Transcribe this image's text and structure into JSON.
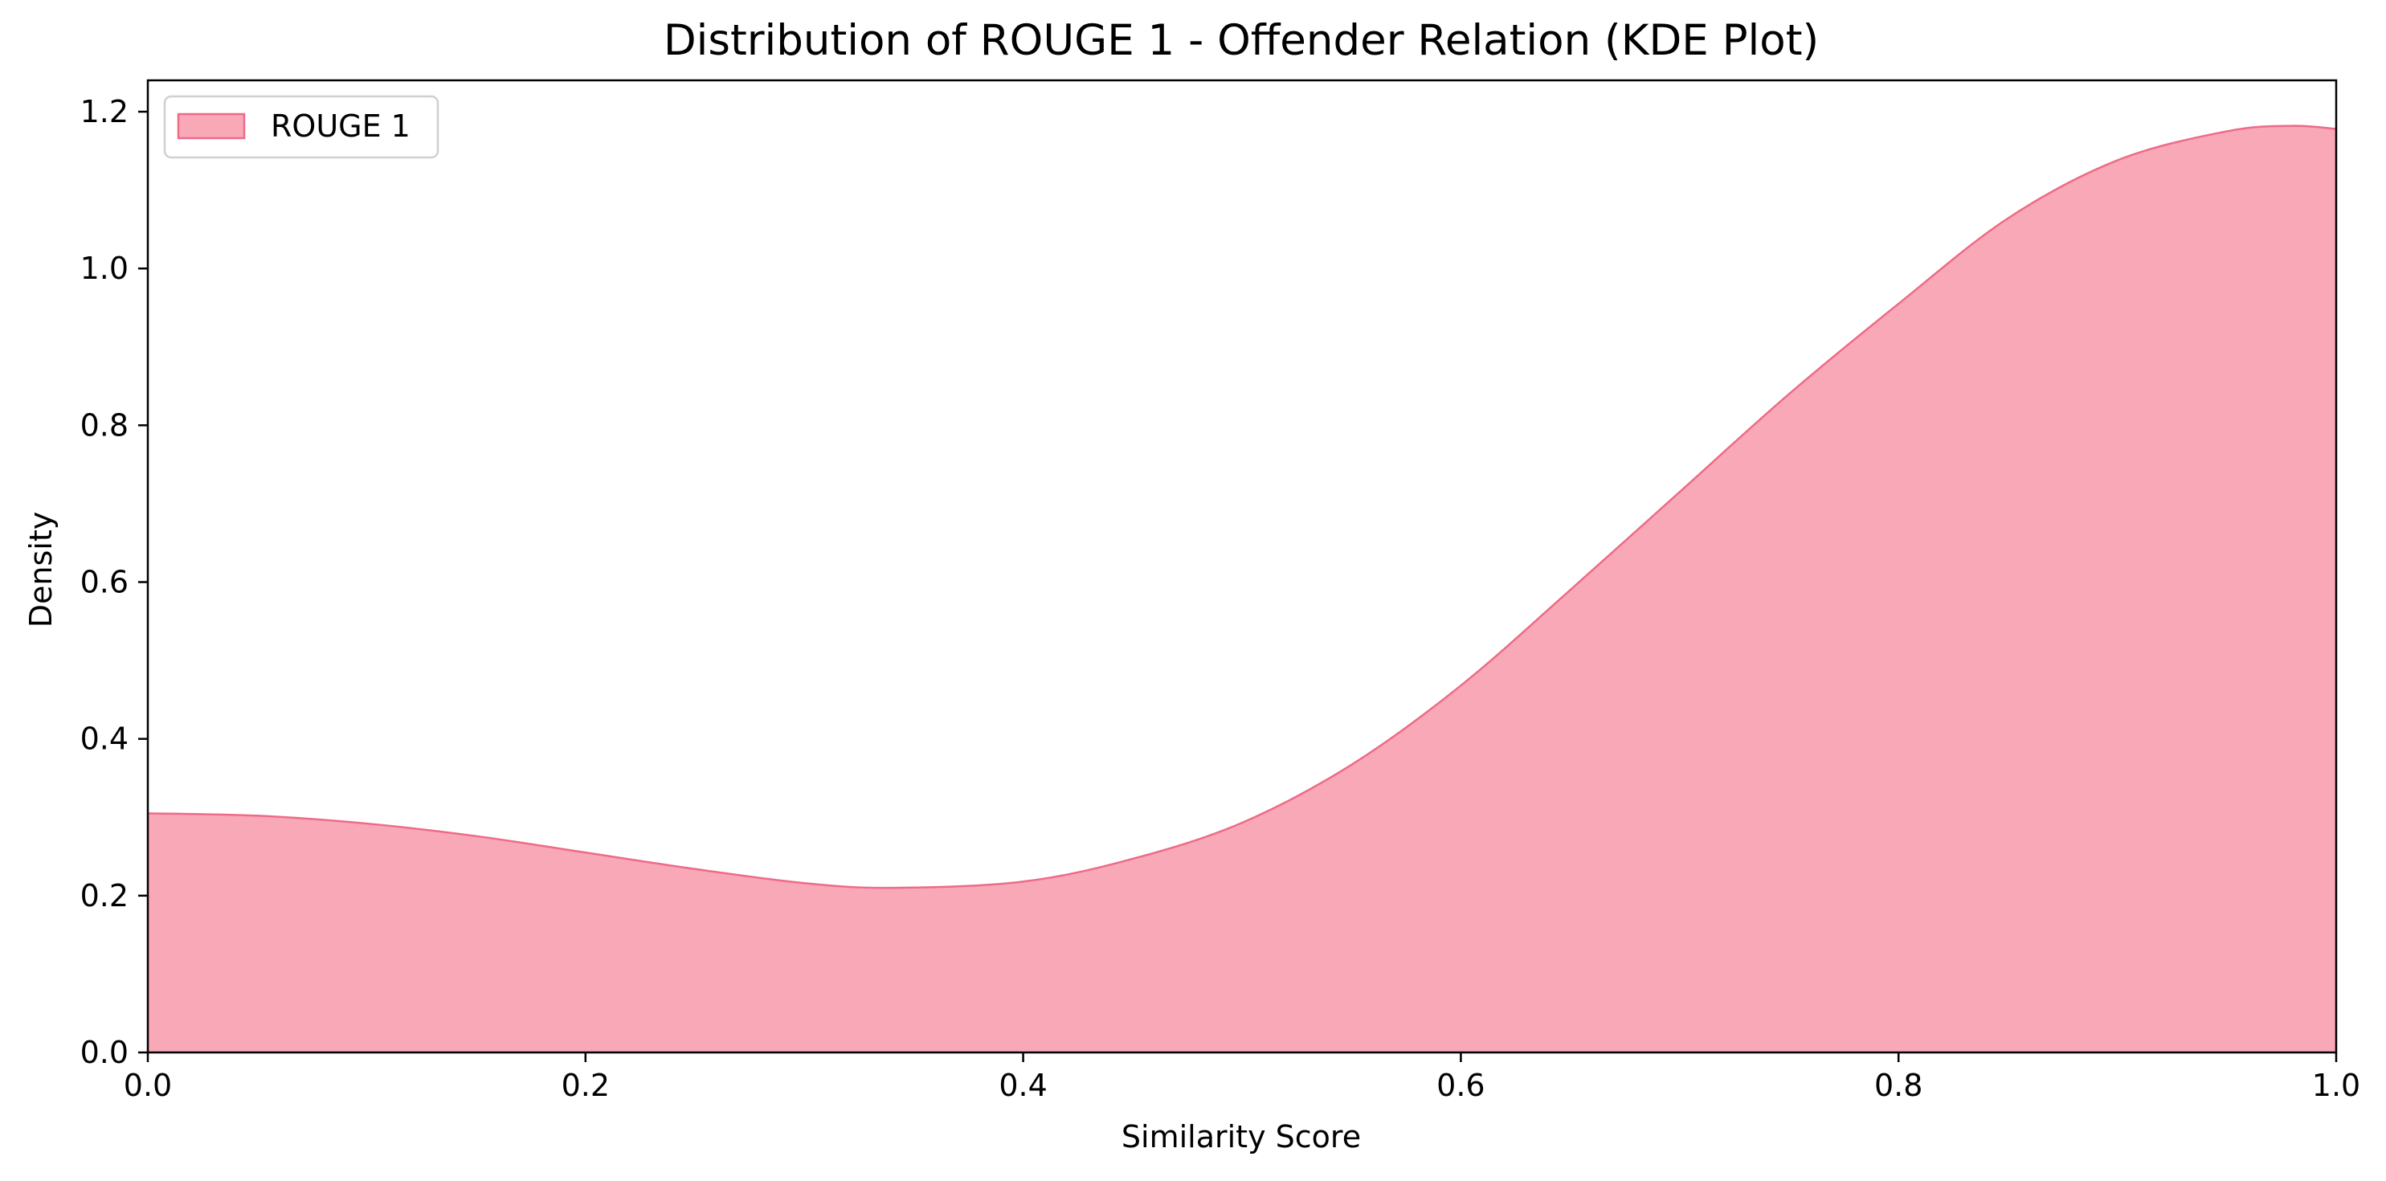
{
  "chart_data": {
    "type": "area",
    "title": "Distribution of ROUGE 1 - Offender Relation (KDE Plot)",
    "xlabel": "Similarity Score",
    "ylabel": "Density",
    "xlim": [
      0.0,
      1.0
    ],
    "ylim": [
      0.0,
      1.24
    ],
    "xticks": [
      "0.0",
      "0.2",
      "0.4",
      "0.6",
      "0.8",
      "1.0"
    ],
    "yticks": [
      "0.0",
      "0.2",
      "0.4",
      "0.6",
      "0.8",
      "1.0",
      "1.2"
    ],
    "grid": false,
    "legend_position": "top-left",
    "series": [
      {
        "name": "ROUGE 1",
        "fill_color": "#f9a8b8",
        "line_color": "#ee6b86",
        "x": [
          0.0,
          0.05,
          0.1,
          0.15,
          0.2,
          0.25,
          0.3,
          0.34,
          0.4,
          0.45,
          0.5,
          0.55,
          0.6,
          0.65,
          0.7,
          0.75,
          0.8,
          0.85,
          0.9,
          0.95,
          0.98,
          1.0
        ],
        "y": [
          0.305,
          0.302,
          0.292,
          0.276,
          0.255,
          0.234,
          0.216,
          0.21,
          0.218,
          0.247,
          0.293,
          0.367,
          0.468,
          0.59,
          0.715,
          0.84,
          0.955,
          1.064,
          1.138,
          1.175,
          1.182,
          1.178
        ]
      }
    ]
  }
}
